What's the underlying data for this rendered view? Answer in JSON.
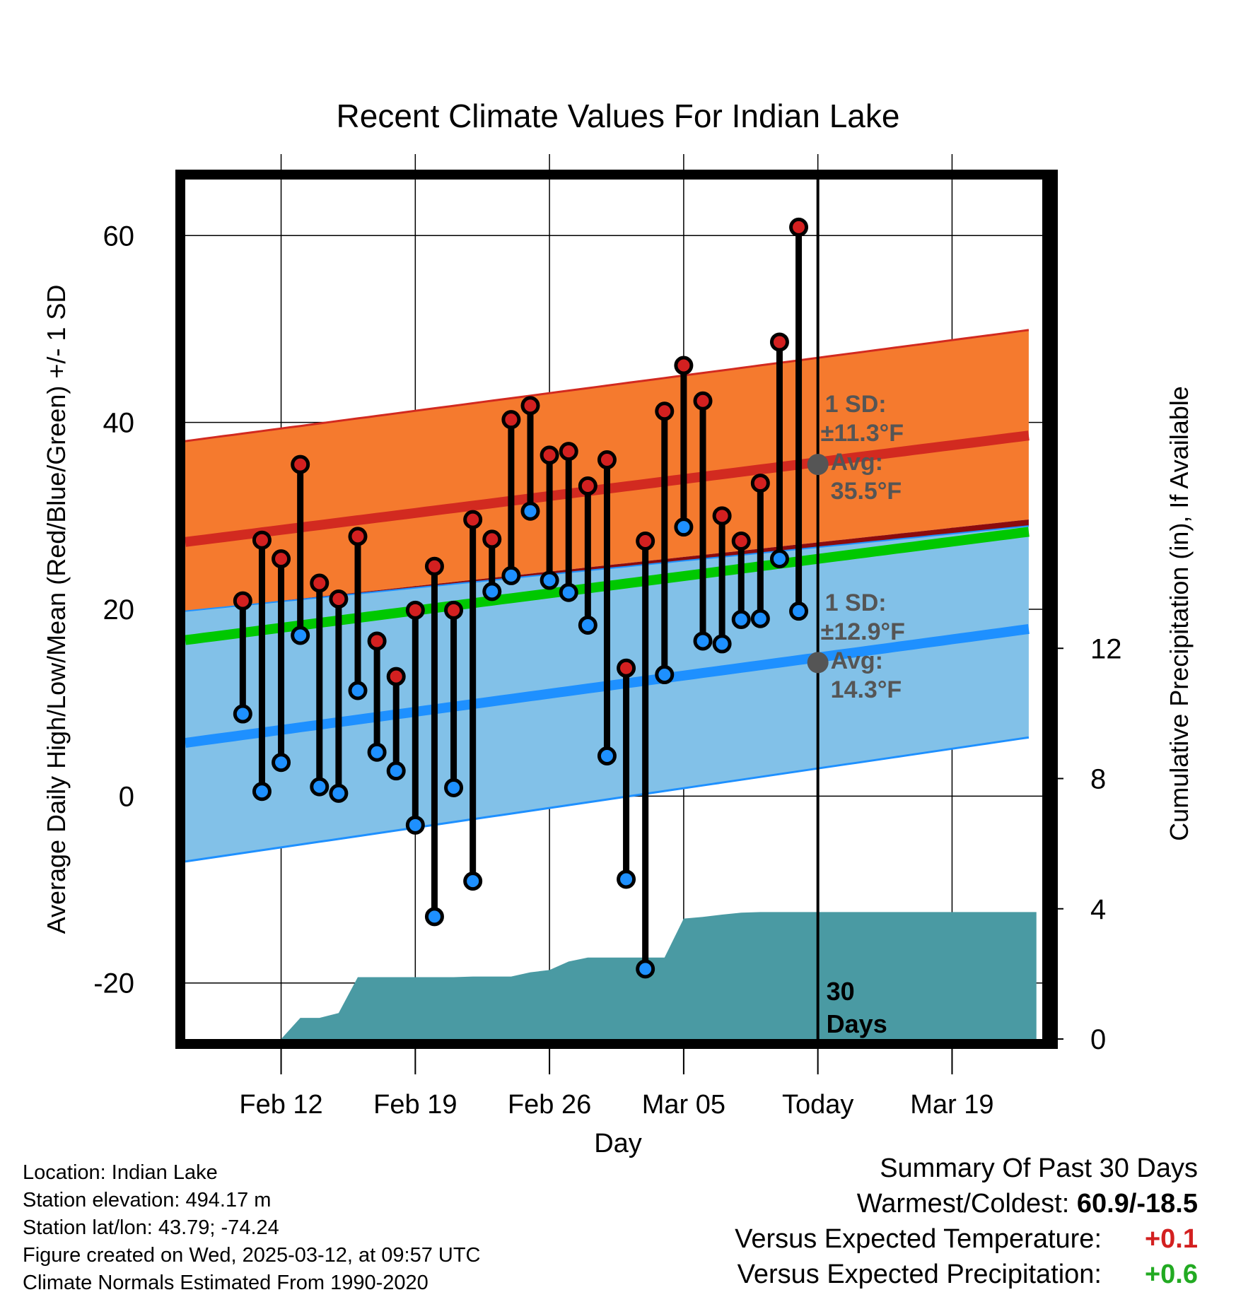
{
  "chart_data": {
    "type": "line",
    "title": "Recent Climate Values For Indian Lake",
    "xlabel": "Day",
    "ylabel": "Average Daily High/Low/Mean (Red/Blue/Green) +/- 1 SD",
    "y2label": "Cumulative Precipitation (in), If Available",
    "ylim": [
      -26,
      66
    ],
    "y2lim": [
      0,
      26.4
    ],
    "yticks": [
      -20,
      0,
      20,
      40,
      60
    ],
    "y2ticks": [
      0,
      4,
      8,
      12
    ],
    "xrange_days": [
      -33,
      12
    ],
    "xticks": [
      {
        "day": -28,
        "label": "Feb 12"
      },
      {
        "day": -21,
        "label": "Feb 19"
      },
      {
        "day": -14,
        "label": "Feb 26"
      },
      {
        "day": -7,
        "label": "Mar 05"
      },
      {
        "day": 0,
        "label": "Today"
      },
      {
        "day": 7,
        "label": "Mar 19"
      }
    ],
    "today_line_label": "30 Days",
    "grid": true,
    "colors": {
      "high_band": "#f57a2e",
      "low_band": "#82c1e8",
      "high_mean": "#d22a20",
      "low_mean": "#1e90ff",
      "overlap": "#8b0b0e",
      "mean_line": "#00c800",
      "precip": "#4a9aa3",
      "high_marker": "#d32020",
      "low_marker": "#1e90ff",
      "avg_marker": "#555555",
      "annotation": "#555555"
    },
    "normal_high": {
      "mean_start": 27.2,
      "mean_end": 38.7,
      "upper_start": 38.0,
      "upper_end": 50.0,
      "lower_start": 19.8,
      "lower_end": 29.7
    },
    "normal_low": {
      "mean_start": 5.7,
      "mean_end": 18.0,
      "upper_start": 19.8,
      "upper_end": 29.0,
      "lower_start": -7.0,
      "lower_end": 6.4
    },
    "normal_mean_start": 16.7,
    "normal_mean_end": 28.4,
    "observations": {
      "days": [
        -30,
        -29,
        -28,
        -27,
        -26,
        -25,
        -24,
        -23,
        -22,
        -21,
        -20,
        -19,
        -18,
        -17,
        -16,
        -15,
        -14,
        -13,
        -12,
        -11,
        -10,
        -9,
        -8,
        -7,
        -6,
        -5,
        -4,
        -3,
        -2,
        -1
      ],
      "highs": [
        20.9,
        27.4,
        25.4,
        35.5,
        22.8,
        21.1,
        27.8,
        16.6,
        12.8,
        19.9,
        24.6,
        19.9,
        29.6,
        27.5,
        40.3,
        41.8,
        36.5,
        36.9,
        33.2,
        36.0,
        13.7,
        27.3,
        41.2,
        46.1,
        42.3,
        30.0,
        27.3,
        33.5,
        48.6,
        60.9
      ],
      "lows": [
        8.8,
        0.5,
        3.6,
        17.2,
        1.0,
        0.3,
        11.3,
        4.7,
        2.7,
        -3.1,
        -12.9,
        0.9,
        -9.1,
        21.9,
        23.6,
        30.5,
        23.1,
        21.8,
        18.3,
        4.3,
        -8.9,
        -18.5,
        13.0,
        28.8,
        16.6,
        16.3,
        18.9,
        19.0,
        25.4,
        19.8
      ]
    },
    "precip": {
      "days": [
        -31,
        -30,
        -29,
        -28,
        -27,
        -26,
        -25,
        -24,
        -23,
        -22,
        -21,
        -20,
        -19,
        -18,
        -17,
        -16,
        -15,
        -14,
        -13,
        -12,
        -11,
        -10,
        -9,
        -8,
        -7,
        -6,
        -5,
        -4,
        -3,
        -2,
        -1,
        0,
        12
      ],
      "cumulative": [
        0,
        0,
        0,
        0,
        0.65,
        0.65,
        0.8,
        1.9,
        1.9,
        1.9,
        1.9,
        1.9,
        1.9,
        1.92,
        1.92,
        1.92,
        2.05,
        2.12,
        2.38,
        2.5,
        2.5,
        2.5,
        2.5,
        2.5,
        3.7,
        3.75,
        3.82,
        3.88,
        3.9,
        3.9,
        3.9,
        3.9,
        3.9
      ]
    },
    "annotations": [
      {
        "lines": [
          "1 SD:",
          "±11.3°F",
          "Avg:",
          "35.5°F"
        ],
        "avg_value": 35.5
      },
      {
        "lines": [
          "1 SD:",
          "±12.9°F",
          "Avg:",
          "14.3°F"
        ],
        "avg_value": 14.3
      }
    ]
  },
  "footer": {
    "location": "Location: Indian Lake",
    "elevation": "Station elevation: 494.17 m",
    "latlon": "Station lat/lon: 43.79; -74.24",
    "created": "Figure created on Wed, 2025-03-12, at 09:57 UTC",
    "normals": "Climate Normals Estimated From 1990-2020"
  },
  "summary": {
    "title": "Summary Of Past 30 Days",
    "warmest_label": "Warmest/Coldest:",
    "warmest_value": "60.9/-18.5",
    "temp_label": "Versus Expected Temperature:",
    "temp_value": "+0.1",
    "temp_color": "#d32020",
    "precip_label": "Versus Expected Precipitation:",
    "precip_value": "+0.6",
    "precip_color": "#22aa22"
  }
}
